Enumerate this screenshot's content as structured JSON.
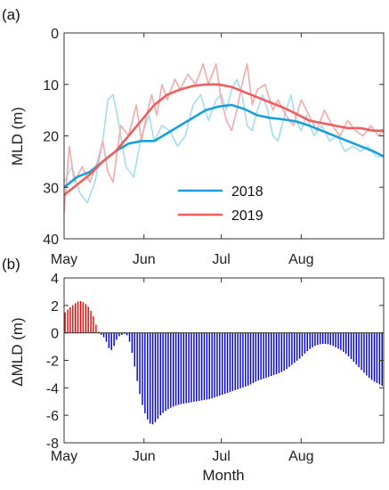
{
  "chart_data": [
    {
      "type": "line",
      "panel_label": "(a)",
      "ylabel": "MLD (m)",
      "ylim": [
        40,
        0
      ],
      "y_inverted": true,
      "yticks": [
        "0",
        "10",
        "20",
        "30",
        "40"
      ],
      "xlim": [
        0,
        124
      ],
      "xticks": [
        {
          "label": "May",
          "day": 0
        },
        {
          "label": "Jun",
          "day": 31
        },
        {
          "label": "Jul",
          "day": 61
        },
        {
          "label": "Aug",
          "day": 92
        }
      ],
      "legend_placement": "bottom-center",
      "series": [
        {
          "name": "2018",
          "color": "#1a9fdc",
          "raw_color": "#a6dcf2",
          "smooth": [
            [
              0,
              30
            ],
            [
              5,
              28
            ],
            [
              10,
              27
            ],
            [
              15,
              25
            ],
            [
              20,
              23
            ],
            [
              25,
              21.5
            ],
            [
              30,
              21
            ],
            [
              35,
              21
            ],
            [
              40,
              19.5
            ],
            [
              45,
              18
            ],
            [
              50,
              16.5
            ],
            [
              55,
              15
            ],
            [
              60,
              14.3
            ],
            [
              65,
              14
            ],
            [
              70,
              14.8
            ],
            [
              75,
              16
            ],
            [
              80,
              16.5
            ],
            [
              85,
              16.8
            ],
            [
              90,
              17.2
            ],
            [
              95,
              18
            ],
            [
              100,
              19
            ],
            [
              105,
              20
            ],
            [
              110,
              21
            ],
            [
              115,
              22
            ],
            [
              120,
              23
            ],
            [
              124,
              24
            ]
          ],
          "raw": [
            [
              0,
              29
            ],
            [
              3,
              26
            ],
            [
              6,
              31
            ],
            [
              9,
              33
            ],
            [
              12,
              29
            ],
            [
              15,
              21
            ],
            [
              17,
              13
            ],
            [
              19,
              12
            ],
            [
              21,
              17
            ],
            [
              24,
              26
            ],
            [
              27,
              28
            ],
            [
              30,
              20
            ],
            [
              33,
              16
            ],
            [
              35,
              21
            ],
            [
              38,
              18
            ],
            [
              41,
              19
            ],
            [
              44,
              22
            ],
            [
              47,
              20
            ],
            [
              50,
              14
            ],
            [
              53,
              12
            ],
            [
              56,
              17
            ],
            [
              59,
              13
            ],
            [
              61,
              12
            ],
            [
              63,
              15
            ],
            [
              65,
              11
            ],
            [
              67,
              9
            ],
            [
              69,
              12
            ],
            [
              71,
              18
            ],
            [
              73,
              19
            ],
            [
              75,
              15
            ],
            [
              77,
              12
            ],
            [
              79,
              15
            ],
            [
              81,
              20
            ],
            [
              83,
              21
            ],
            [
              85,
              17
            ],
            [
              88,
              12
            ],
            [
              90,
              17
            ],
            [
              92,
              19
            ],
            [
              94,
              16
            ],
            [
              97,
              20
            ],
            [
              100,
              18
            ],
            [
              103,
              21
            ],
            [
              106,
              20
            ],
            [
              109,
              23
            ],
            [
              112,
              22
            ],
            [
              115,
              23
            ],
            [
              118,
              22
            ],
            [
              121,
              24
            ],
            [
              124,
              24
            ]
          ]
        },
        {
          "name": "2019",
          "color": "#ee5f5f",
          "raw_color": "#f5aaaa",
          "smooth": [
            [
              0,
              31.5
            ],
            [
              5,
              29.5
            ],
            [
              10,
              27.5
            ],
            [
              15,
              25
            ],
            [
              20,
              23
            ],
            [
              25,
              20
            ],
            [
              30,
              17
            ],
            [
              35,
              14
            ],
            [
              40,
              12
            ],
            [
              45,
              11
            ],
            [
              50,
              10.3
            ],
            [
              55,
              10
            ],
            [
              60,
              10
            ],
            [
              65,
              10.5
            ],
            [
              70,
              11.5
            ],
            [
              75,
              12.5
            ],
            [
              80,
              13.5
            ],
            [
              85,
              14.5
            ],
            [
              90,
              15.7
            ],
            [
              95,
              17
            ],
            [
              100,
              17.5
            ],
            [
              105,
              18
            ],
            [
              110,
              18.5
            ],
            [
              115,
              18.5
            ],
            [
              120,
              19
            ],
            [
              124,
              19
            ]
          ],
          "raw": [
            [
              0,
              35
            ],
            [
              2,
              22
            ],
            [
              4,
              29
            ],
            [
              7,
              26
            ],
            [
              10,
              29
            ],
            [
              13,
              25
            ],
            [
              15,
              21
            ],
            [
              17,
              27
            ],
            [
              19,
              29
            ],
            [
              22,
              18
            ],
            [
              25,
              20
            ],
            [
              28,
              14
            ],
            [
              30,
              21
            ],
            [
              32,
              16
            ],
            [
              34,
              12
            ],
            [
              36,
              16
            ],
            [
              38,
              10
            ],
            [
              40,
              13
            ],
            [
              43,
              9
            ],
            [
              45,
              11
            ],
            [
              48,
              8
            ],
            [
              51,
              10
            ],
            [
              54,
              6
            ],
            [
              56,
              10
            ],
            [
              59,
              6
            ],
            [
              61,
              13
            ],
            [
              63,
              17
            ],
            [
              65,
              19
            ],
            [
              67,
              15
            ],
            [
              69,
              10
            ],
            [
              71,
              6
            ],
            [
              73,
              14
            ],
            [
              75,
              11
            ],
            [
              78,
              10
            ],
            [
              81,
              15
            ],
            [
              83,
              13
            ],
            [
              86,
              16
            ],
            [
              89,
              18
            ],
            [
              92,
              13
            ],
            [
              95,
              16
            ],
            [
              98,
              19
            ],
            [
              101,
              15
            ],
            [
              104,
              18
            ],
            [
              107,
              20
            ],
            [
              110,
              17
            ],
            [
              113,
              19
            ],
            [
              116,
              20
            ],
            [
              119,
              18
            ],
            [
              122,
              20
            ],
            [
              124,
              19
            ]
          ]
        }
      ]
    },
    {
      "type": "bar",
      "panel_label": "(b)",
      "ylabel": "ΔMLD (m)",
      "xlabel": "Month",
      "ylim": [
        -8,
        4
      ],
      "yticks": [
        "4",
        "2",
        "0",
        "-2",
        "-4",
        "-6",
        "-8"
      ],
      "xlim": [
        0,
        124
      ],
      "xticks": [
        {
          "label": "May",
          "day": 0
        },
        {
          "label": "Jun",
          "day": 31
        },
        {
          "label": "Jul",
          "day": 61
        },
        {
          "label": "Aug",
          "day": 92
        }
      ],
      "positive_color": "#ff0000",
      "negative_color": "#0000ee",
      "profile": [
        [
          0,
          1.4
        ],
        [
          2,
          1.8
        ],
        [
          4,
          2.1
        ],
        [
          6,
          2.35
        ],
        [
          8,
          2.2
        ],
        [
          10,
          1.8
        ],
        [
          12,
          1.0
        ],
        [
          13,
          0.2
        ],
        [
          14,
          -0.05
        ],
        [
          16,
          -0.4
        ],
        [
          17,
          -0.9
        ],
        [
          18,
          -1.3
        ],
        [
          19,
          -1.2
        ],
        [
          20,
          -0.7
        ],
        [
          21,
          -0.3
        ],
        [
          22,
          -0.2
        ],
        [
          23,
          -0.1
        ],
        [
          24,
          -0.05
        ],
        [
          25,
          -0.3
        ],
        [
          26,
          -1.0
        ],
        [
          27,
          -1.9
        ],
        [
          28,
          -3.0
        ],
        [
          29,
          -4.0
        ],
        [
          30,
          -4.9
        ],
        [
          31,
          -5.6
        ],
        [
          32,
          -6.1
        ],
        [
          33,
          -6.5
        ],
        [
          34,
          -6.7
        ],
        [
          35,
          -6.6
        ],
        [
          36,
          -6.4
        ],
        [
          37,
          -6.1
        ],
        [
          38,
          -5.9
        ],
        [
          40,
          -5.6
        ],
        [
          42,
          -5.4
        ],
        [
          45,
          -5.2
        ],
        [
          48,
          -5.1
        ],
        [
          51,
          -5.0
        ],
        [
          54,
          -4.9
        ],
        [
          57,
          -4.8
        ],
        [
          60,
          -4.6
        ],
        [
          63,
          -4.4
        ],
        [
          66,
          -4.2
        ],
        [
          69,
          -4.0
        ],
        [
          72,
          -3.8
        ],
        [
          75,
          -3.5
        ],
        [
          78,
          -3.3
        ],
        [
          81,
          -3.1
        ],
        [
          84,
          -2.9
        ],
        [
          86,
          -2.7
        ],
        [
          88,
          -2.4
        ],
        [
          90,
          -2.1
        ],
        [
          92,
          -1.8
        ],
        [
          94,
          -1.4
        ],
        [
          96,
          -1.1
        ],
        [
          98,
          -0.9
        ],
        [
          100,
          -0.8
        ],
        [
          102,
          -0.8
        ],
        [
          104,
          -0.9
        ],
        [
          106,
          -1.1
        ],
        [
          108,
          -1.3
        ],
        [
          110,
          -1.6
        ],
        [
          112,
          -2.0
        ],
        [
          114,
          -2.4
        ],
        [
          116,
          -2.8
        ],
        [
          118,
          -3.2
        ],
        [
          120,
          -3.5
        ],
        [
          122,
          -3.7
        ],
        [
          124,
          -3.9
        ]
      ]
    }
  ]
}
